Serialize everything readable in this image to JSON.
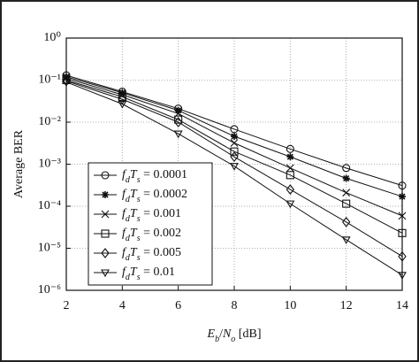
{
  "chart_data": {
    "type": "line",
    "ylabel": "Average BER",
    "xlabel": "E_b/N_o [dB]",
    "x": [
      2,
      4,
      6,
      8,
      10,
      12,
      14
    ],
    "xlim": [
      2,
      14
    ],
    "xticks": [
      2,
      4,
      6,
      8,
      10,
      12,
      14
    ],
    "ylim": [
      1e-06,
      1
    ],
    "log_y": true,
    "grid": true,
    "legend": "lower left",
    "yticks": [
      {
        "value": 1,
        "label": "10⁰"
      },
      {
        "value": 0.1,
        "label": "10⁻¹"
      },
      {
        "value": 0.01,
        "label": "10⁻²"
      },
      {
        "value": 0.001,
        "label": "10⁻³"
      },
      {
        "value": 0.0001,
        "label": "10⁻⁴"
      },
      {
        "value": 1e-05,
        "label": "10⁻⁵"
      },
      {
        "value": 1e-06,
        "label": "10⁻⁶"
      }
    ],
    "series": [
      {
        "name": "f_dT_s = 0.0001",
        "color": "#111",
        "marker": "circle",
        "values": [
          0.13,
          0.053,
          0.021,
          0.0068,
          0.0023,
          0.00081,
          0.00031
        ]
      },
      {
        "name": "f_dT_s = 0.0002",
        "color": "#111",
        "marker": "star",
        "values": [
          0.12,
          0.05,
          0.019,
          0.0046,
          0.0015,
          0.00046,
          0.00017
        ]
      },
      {
        "name": "f_dT_s = 0.001",
        "color": "#111",
        "marker": "x",
        "values": [
          0.11,
          0.045,
          0.016,
          0.0032,
          0.00081,
          0.00021,
          5.9e-05
        ]
      },
      {
        "name": "f_dT_s = 0.002",
        "color": "#111",
        "marker": "square",
        "values": [
          0.1,
          0.04,
          0.0115,
          0.002,
          0.00055,
          0.000115,
          2.3e-05
        ]
      },
      {
        "name": "f_dT_s = 0.005",
        "color": "#111",
        "marker": "diamond",
        "values": [
          0.095,
          0.035,
          0.01,
          0.0015,
          0.00025,
          4.2e-05,
          6.4e-06
        ]
      },
      {
        "name": "f_dT_s = 0.01",
        "color": "#111",
        "marker": "triangle-down",
        "values": [
          0.09,
          0.027,
          0.0053,
          0.0009,
          0.000115,
          1.6e-05,
          2.3e-06
        ]
      }
    ]
  }
}
